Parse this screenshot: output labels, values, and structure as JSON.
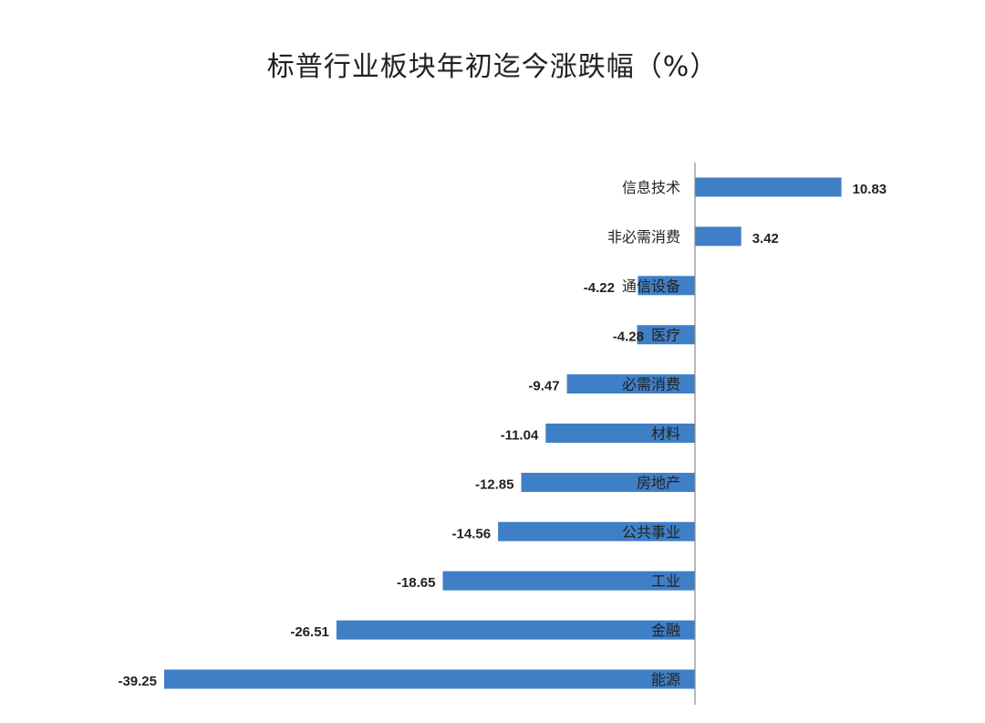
{
  "chart_data": {
    "type": "bar",
    "orientation": "horizontal",
    "title": "标普行业板块年初迄今涨跌幅（%）",
    "categories": [
      "信息技术",
      "非必需消费",
      "通信设备",
      "医疗",
      "必需消费",
      "材料",
      "房地产",
      "公共事业",
      "工业",
      "金融",
      "能源"
    ],
    "values": [
      10.83,
      3.42,
      -4.22,
      -4.28,
      -9.47,
      -11.04,
      -12.85,
      -14.56,
      -18.65,
      -26.51,
      -39.25
    ],
    "value_labels": [
      "10.83",
      "3.42",
      "-4.22",
      "-4.28",
      "-9.47",
      "-11.04",
      "-12.85",
      "-14.56",
      "-18.65",
      "-26.51",
      "-39.25"
    ],
    "xlim": [
      -39.25,
      12
    ],
    "grid": false,
    "legend": "none",
    "bar_color": "#3f7fc6"
  }
}
